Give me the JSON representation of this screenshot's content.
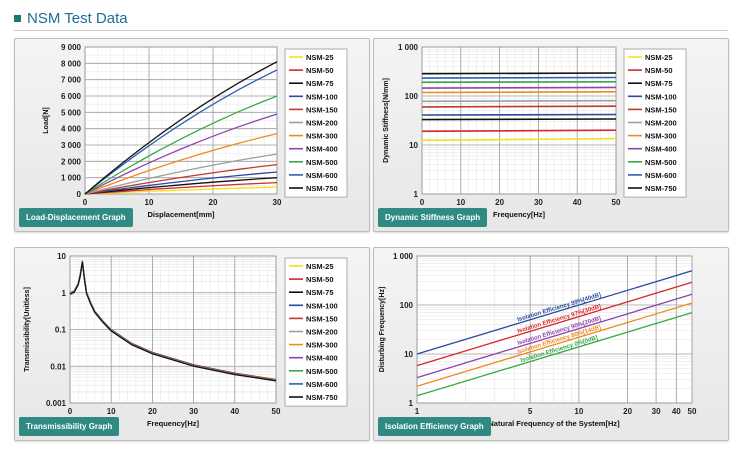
{
  "page": {
    "title": "NSM Test Data"
  },
  "series_names": [
    "NSM-25",
    "NSM-50",
    "NSM-75",
    "NSM-100",
    "NSM-150",
    "NSM-200",
    "NSM-300",
    "NSM-400",
    "NSM-500",
    "NSM-600",
    "NSM-750"
  ],
  "series_colors": [
    "#f2e21c",
    "#d7282b",
    "#111111",
    "#2b4aa0",
    "#c0392b",
    "#9e9e9e",
    "#f08a1e",
    "#8e44ad",
    "#39a845",
    "#2c5fb5",
    "#111111"
  ],
  "chart_data": [
    {
      "id": "load-displacement",
      "type": "line",
      "badge": "Load-Displacement Graph",
      "xlabel": "Displacement[mm]",
      "ylabel": "Load[N]",
      "xlim": [
        0,
        30
      ],
      "ylim": [
        0,
        9000
      ],
      "xticks": [
        0,
        10,
        20,
        30
      ],
      "yticks": [
        0,
        1000,
        2000,
        3000,
        4000,
        5000,
        6000,
        7000,
        8000,
        9000
      ],
      "ytick_labels": [
        "0",
        "1 000",
        "2 000",
        "3 000",
        "4 000",
        "5 000",
        "6 000",
        "7 000",
        "8 000",
        "9 000"
      ],
      "legend": "right",
      "series": [
        {
          "name": "NSM-25",
          "x": [
            0,
            30
          ],
          "y": [
            0,
            420
          ]
        },
        {
          "name": "NSM-50",
          "x": [
            0,
            30
          ],
          "y": [
            0,
            700
          ]
        },
        {
          "name": "NSM-75",
          "x": [
            0,
            30
          ],
          "y": [
            0,
            1000
          ]
        },
        {
          "name": "NSM-100",
          "x": [
            0,
            30
          ],
          "y": [
            0,
            1350
          ]
        },
        {
          "name": "NSM-150",
          "x": [
            0,
            30
          ],
          "y": [
            0,
            1800
          ]
        },
        {
          "name": "NSM-200",
          "x": [
            0,
            30
          ],
          "y": [
            0,
            2450
          ]
        },
        {
          "name": "NSM-300",
          "x": [
            0,
            30
          ],
          "y": [
            0,
            3700
          ]
        },
        {
          "name": "NSM-400",
          "x": [
            0,
            30
          ],
          "y": [
            0,
            4900
          ]
        },
        {
          "name": "NSM-500",
          "x": [
            0,
            30
          ],
          "y": [
            0,
            6000
          ]
        },
        {
          "name": "NSM-600",
          "x": [
            0,
            30
          ],
          "y": [
            0,
            7600
          ]
        },
        {
          "name": "NSM-750",
          "x": [
            0,
            30
          ],
          "y": [
            0,
            8100
          ]
        }
      ]
    },
    {
      "id": "dynamic-stiffness",
      "type": "line",
      "badge": "Dynamic Stiffness Graph",
      "xlabel": "Frequency[Hz]",
      "ylabel": "Dynamic Stiffness[N/mm]",
      "xlim": [
        0,
        50
      ],
      "ylim": [
        1,
        1000
      ],
      "yscale": "log",
      "xticks": [
        0,
        10,
        20,
        30,
        40,
        50
      ],
      "yticks": [
        1,
        10,
        100,
        1000
      ],
      "ytick_labels": [
        "1",
        "10",
        "100",
        "1 000"
      ],
      "legend": "right",
      "series": [
        {
          "name": "NSM-25",
          "x": [
            0,
            50
          ],
          "y": [
            12.5,
            13.5
          ]
        },
        {
          "name": "NSM-50",
          "x": [
            0,
            50
          ],
          "y": [
            19,
            20
          ]
        },
        {
          "name": "NSM-75",
          "x": [
            0,
            50
          ],
          "y": [
            33,
            34
          ]
        },
        {
          "name": "NSM-100",
          "x": [
            0,
            50
          ],
          "y": [
            41,
            42
          ]
        },
        {
          "name": "NSM-150",
          "x": [
            0,
            50
          ],
          "y": [
            60,
            62
          ]
        },
        {
          "name": "NSM-200",
          "x": [
            0,
            50
          ],
          "y": [
            78,
            80
          ]
        },
        {
          "name": "NSM-300",
          "x": [
            0,
            50
          ],
          "y": [
            118,
            122
          ]
        },
        {
          "name": "NSM-400",
          "x": [
            0,
            50
          ],
          "y": [
            145,
            150
          ]
        },
        {
          "name": "NSM-500",
          "x": [
            0,
            50
          ],
          "y": [
            190,
            195
          ]
        },
        {
          "name": "NSM-600",
          "x": [
            0,
            50
          ],
          "y": [
            232,
            238
          ]
        },
        {
          "name": "NSM-750",
          "x": [
            0,
            50
          ],
          "y": [
            285,
            295
          ]
        }
      ]
    },
    {
      "id": "transmissibility",
      "type": "line",
      "badge": "Transmissibility Graph",
      "xlabel": "Frequency[Hz]",
      "ylabel": "Transmissibility[Unitless]",
      "xlim": [
        0,
        50
      ],
      "ylim": [
        0.001,
        10
      ],
      "yscale": "log",
      "xticks": [
        0,
        10,
        20,
        30,
        40,
        50
      ],
      "yticks": [
        0.001,
        0.01,
        0.1,
        1,
        10
      ],
      "ytick_labels": [
        "0.001",
        "0.01",
        "0.1",
        "1",
        "10"
      ],
      "legend": "right",
      "series_x": [
        0,
        1,
        2,
        2.5,
        3,
        3.5,
        4,
        5,
        6,
        8,
        10,
        15,
        20,
        30,
        40,
        50
      ],
      "series_y": [
        1,
        1.12,
        1.8,
        3.2,
        7.5,
        2.6,
        1.05,
        0.55,
        0.32,
        0.17,
        0.1,
        0.042,
        0.024,
        0.011,
        0.0065,
        0.0044
      ]
    },
    {
      "id": "isolation-efficiency",
      "type": "line",
      "badge": "Isolation Efficiency Graph",
      "xlabel": "Natural Frequency of the System[Hz]",
      "ylabel": "Disturbing Frequency[Hz]",
      "xscale": "log",
      "yscale": "log",
      "xlim": [
        1,
        50
      ],
      "ylim": [
        1,
        1000
      ],
      "xticks": [
        1,
        5,
        10,
        20,
        30,
        40,
        50
      ],
      "xtick_labels": [
        "1",
        "5",
        "10",
        "20",
        "30",
        "40",
        "50"
      ],
      "yticks": [
        1,
        10,
        100,
        1000
      ],
      "ytick_labels": [
        "1",
        "10",
        "100",
        "1 000"
      ],
      "series": [
        {
          "name": "Isolation Efficiency 99%[40dB]",
          "color": "#2b4aa0",
          "x": [
            1,
            50
          ],
          "y": [
            10,
            500
          ]
        },
        {
          "name": "Isolation Efficiency 97%[30dB]",
          "color": "#d7282b",
          "x": [
            1,
            50
          ],
          "y": [
            5.8,
            290
          ]
        },
        {
          "name": "Isolation Efficiency 90%[20dB]",
          "color": "#8e44ad",
          "x": [
            1,
            50
          ],
          "y": [
            3.3,
            165
          ]
        },
        {
          "name": "Isolation Efficiency 80%[14dB]",
          "color": "#f08a1e",
          "x": [
            1,
            50
          ],
          "y": [
            2.2,
            110
          ]
        },
        {
          "name": "Isolation Efficiency 0%[0dB]",
          "color": "#39a845",
          "x": [
            1,
            50
          ],
          "y": [
            1.4,
            70
          ]
        }
      ]
    }
  ]
}
